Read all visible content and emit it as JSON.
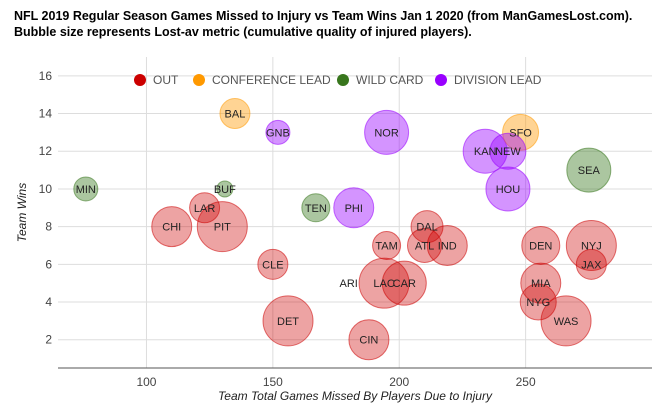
{
  "chart_data": {
    "type": "bubble",
    "title": "NFL 2019 Regular Season Games Missed to Injury vs Team Wins Jan 1 2020 (from ManGamesLost.com). Bubble size represents Lost-av metric (cumulative quality of injured players).",
    "xlabel": "Team Total Games Missed By Players Due to Injury",
    "ylabel": "Team Wins",
    "xlim": [
      65,
      300
    ],
    "ylim": [
      0.5,
      17
    ],
    "x_ticks": [
      100,
      150,
      200,
      250
    ],
    "y_ticks": [
      2,
      4,
      6,
      8,
      10,
      12,
      14,
      16
    ],
    "legend": [
      {
        "name": "OUT",
        "color": "#cc0000"
      },
      {
        "name": "CONFERENCE LEAD",
        "color": "#ff9900"
      },
      {
        "name": "WILD CARD",
        "color": "#38761d"
      },
      {
        "name": "DIVISION LEAD",
        "color": "#9900ff"
      }
    ],
    "points": [
      {
        "team": "MIN",
        "x": 76,
        "y": 10,
        "size": 12,
        "category": "WILD CARD"
      },
      {
        "team": "BAL",
        "x": 135,
        "y": 14,
        "size": 15,
        "category": "CONFERENCE LEAD"
      },
      {
        "team": "GNB",
        "x": 152,
        "y": 13,
        "size": 12,
        "category": "DIVISION LEAD"
      },
      {
        "team": "NOR",
        "x": 195,
        "y": 13,
        "size": 22,
        "category": "DIVISION LEAD"
      },
      {
        "team": "SFO",
        "x": 248,
        "y": 13,
        "size": 18,
        "category": "CONFERENCE LEAD"
      },
      {
        "team": "KAN",
        "x": 234,
        "y": 12,
        "size": 22,
        "category": "DIVISION LEAD"
      },
      {
        "team": "NEW",
        "x": 243,
        "y": 12,
        "size": 18,
        "category": "DIVISION LEAD"
      },
      {
        "team": "SEA",
        "x": 275,
        "y": 11,
        "size": 22,
        "category": "WILD CARD"
      },
      {
        "team": "HOU",
        "x": 243,
        "y": 10,
        "size": 22,
        "category": "DIVISION LEAD"
      },
      {
        "team": "BUF",
        "x": 131,
        "y": 10,
        "size": 8,
        "category": "WILD CARD"
      },
      {
        "team": "LAR",
        "x": 123,
        "y": 9,
        "size": 15,
        "category": "OUT"
      },
      {
        "team": "TEN",
        "x": 167,
        "y": 9,
        "size": 14,
        "category": "WILD CARD"
      },
      {
        "team": "PHI",
        "x": 182,
        "y": 9,
        "size": 20,
        "category": "DIVISION LEAD"
      },
      {
        "team": "CHI",
        "x": 110,
        "y": 8,
        "size": 20,
        "category": "OUT"
      },
      {
        "team": "PIT",
        "x": 130,
        "y": 8,
        "size": 25,
        "category": "OUT"
      },
      {
        "team": "DAL",
        "x": 211,
        "y": 8,
        "size": 16,
        "category": "OUT"
      },
      {
        "team": "TAM",
        "x": 195,
        "y": 7,
        "size": 14,
        "category": "OUT"
      },
      {
        "team": "ATL",
        "x": 210,
        "y": 7,
        "size": 17,
        "category": "OUT"
      },
      {
        "team": "IND",
        "x": 219,
        "y": 7,
        "size": 20,
        "category": "OUT"
      },
      {
        "team": "DEN",
        "x": 256,
        "y": 7,
        "size": 19,
        "category": "OUT"
      },
      {
        "team": "NYJ",
        "x": 276,
        "y": 7,
        "size": 25,
        "category": "OUT"
      },
      {
        "team": "CLE",
        "x": 150,
        "y": 6,
        "size": 15,
        "category": "OUT"
      },
      {
        "team": "JAX",
        "x": 276,
        "y": 6,
        "size": 15,
        "category": "OUT"
      },
      {
        "team": "ARI",
        "x": 180,
        "y": 5,
        "size": 0,
        "category": "OUT"
      },
      {
        "team": "LAC",
        "x": 194,
        "y": 5,
        "size": 25,
        "category": "OUT"
      },
      {
        "team": "CAR",
        "x": 202,
        "y": 5,
        "size": 22,
        "category": "OUT"
      },
      {
        "team": "MIA",
        "x": 256,
        "y": 5,
        "size": 20,
        "category": "OUT"
      },
      {
        "team": "NYG",
        "x": 255,
        "y": 4,
        "size": 18,
        "category": "OUT"
      },
      {
        "team": "DET",
        "x": 156,
        "y": 3,
        "size": 25,
        "category": "OUT"
      },
      {
        "team": "WAS",
        "x": 266,
        "y": 3,
        "size": 25,
        "category": "OUT"
      },
      {
        "team": "CIN",
        "x": 188,
        "y": 2,
        "size": 20,
        "category": "OUT"
      }
    ]
  }
}
